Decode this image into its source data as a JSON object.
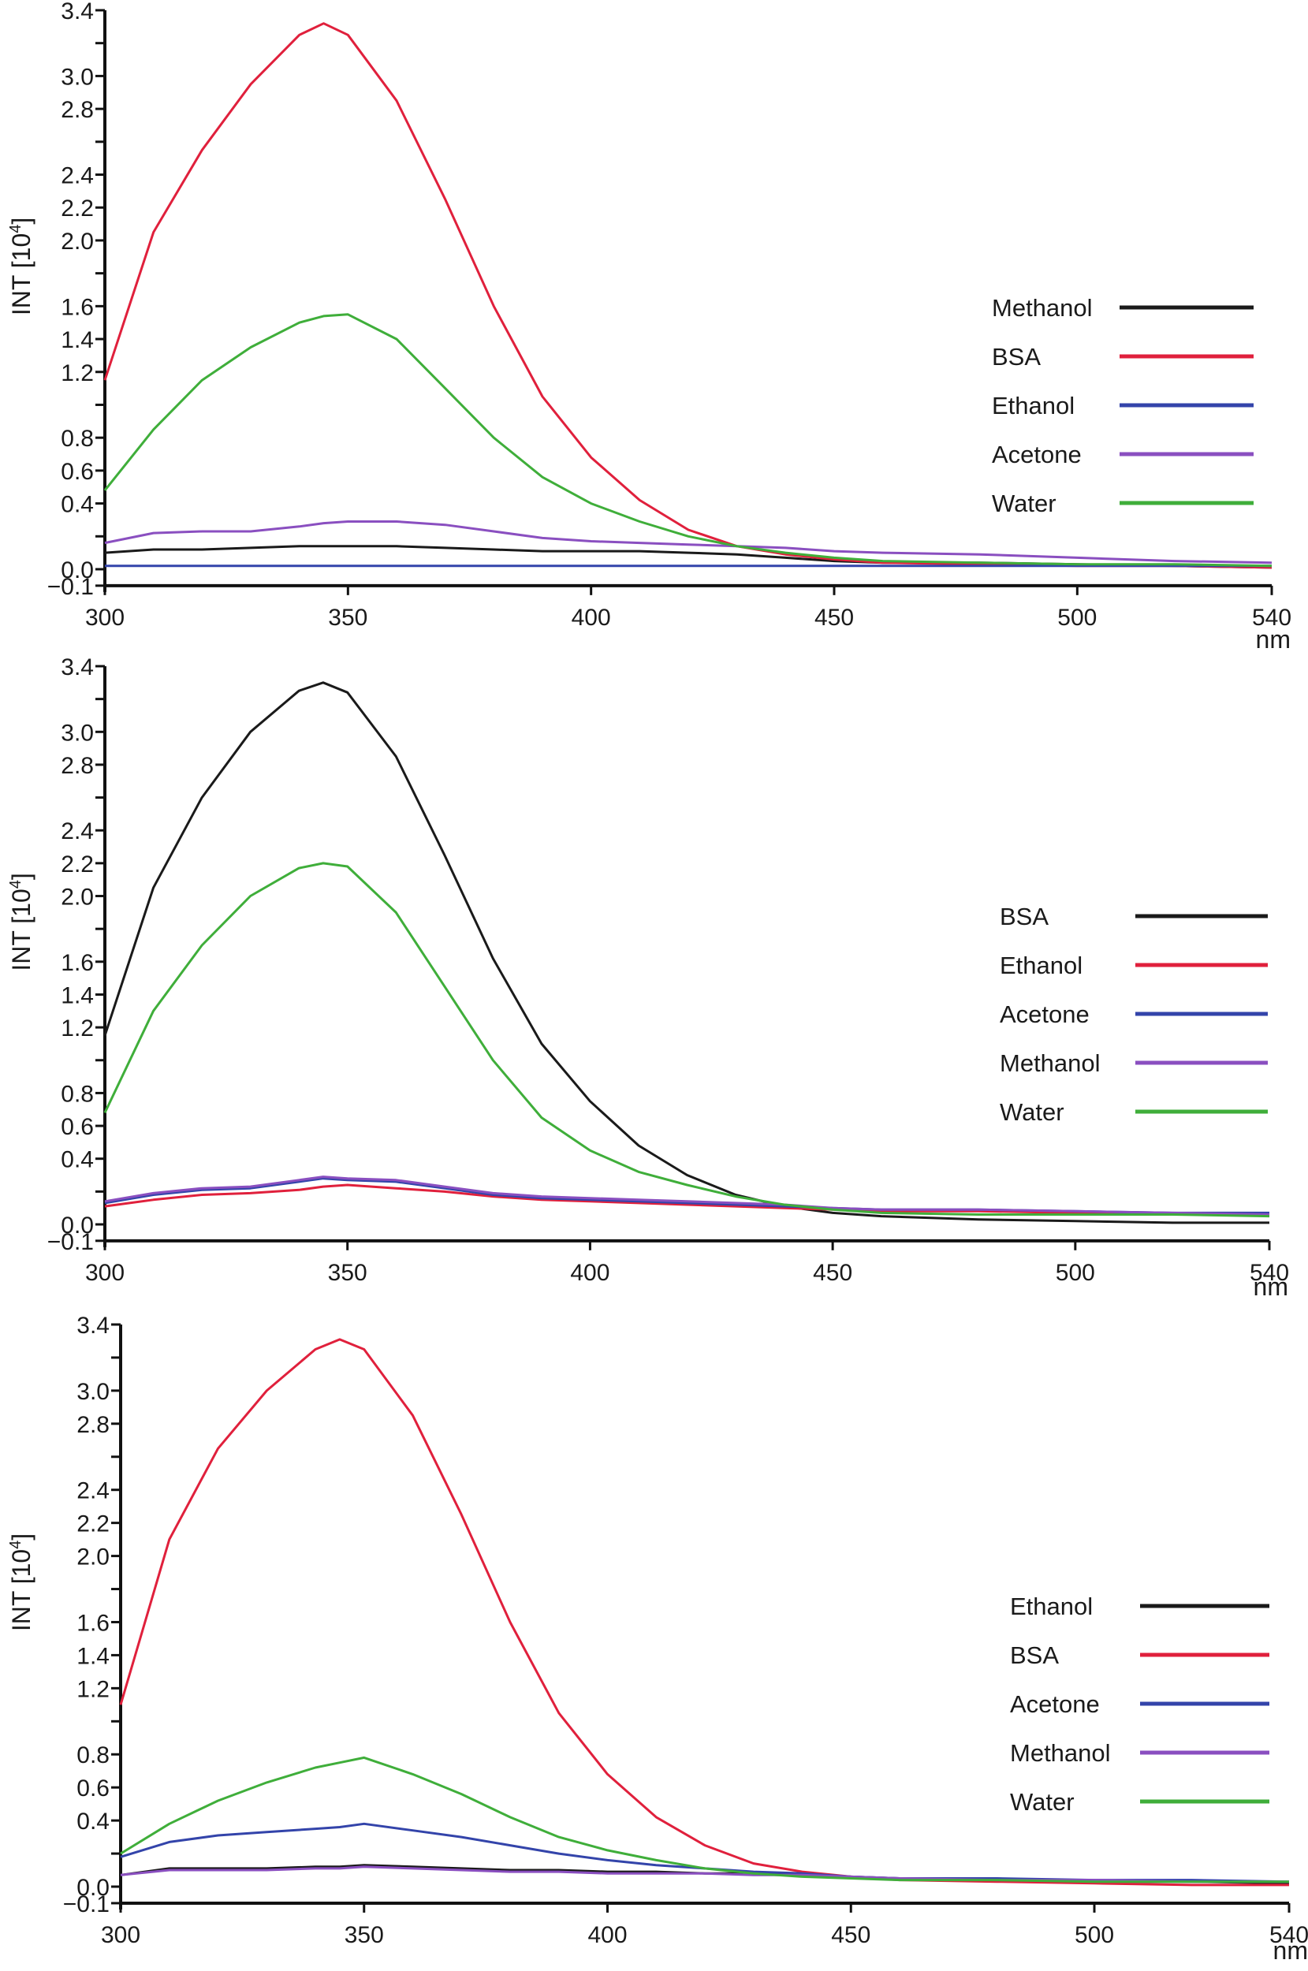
{
  "chart_data": [
    {
      "type": "line",
      "panel": "top",
      "xlabel": "nm",
      "ylabel": "INT [10^4]",
      "ylabel_base": "INT [10",
      "ylabel_exp": "4",
      "xlim": [
        300,
        540
      ],
      "ylim": [
        -0.1,
        3.4
      ],
      "x_ticks": [
        300,
        350,
        400,
        450,
        500,
        540
      ],
      "x_tick_labels": [
        "300",
        "350",
        "400",
        "450",
        "500",
        "540"
      ],
      "y_ticks": [
        3.4,
        3.2,
        3.0,
        2.8,
        2.6,
        2.4,
        2.2,
        2.0,
        1.8,
        1.6,
        1.4,
        1.2,
        1.0,
        0.8,
        0.6,
        0.4,
        0.2,
        0.0,
        -0.1
      ],
      "y_tick_labels": [
        "3.4",
        "",
        "3.0",
        "2.8",
        "",
        "2.4",
        "2.2",
        "2.0",
        "",
        "1.6",
        "1.4",
        "1.2",
        "",
        "0.8",
        "0.6",
        "0.4",
        "",
        "0.0",
        "-0.1"
      ],
      "grid": false,
      "legend_position": "right",
      "x": [
        300,
        310,
        320,
        330,
        340,
        345,
        350,
        360,
        370,
        380,
        390,
        400,
        410,
        420,
        430,
        440,
        450,
        460,
        480,
        500,
        520,
        540
      ],
      "series": [
        {
          "name": "Methanol",
          "color": "#1a1a1a",
          "values": [
            0.1,
            0.12,
            0.12,
            0.13,
            0.14,
            0.14,
            0.14,
            0.14,
            0.13,
            0.12,
            0.11,
            0.11,
            0.11,
            0.1,
            0.09,
            0.07,
            0.05,
            0.04,
            0.04,
            0.03,
            0.02,
            0.01
          ]
        },
        {
          "name": "BSA",
          "color": "#e0203c",
          "values": [
            1.15,
            2.05,
            2.55,
            2.95,
            3.25,
            3.32,
            3.25,
            2.85,
            2.25,
            1.6,
            1.05,
            0.68,
            0.42,
            0.24,
            0.14,
            0.09,
            0.06,
            0.04,
            0.03,
            0.02,
            0.02,
            0.01
          ]
        },
        {
          "name": "Ethanol",
          "color": "#3344aa",
          "values": [
            0.02,
            0.02,
            0.02,
            0.02,
            0.02,
            0.02,
            0.02,
            0.02,
            0.02,
            0.02,
            0.02,
            0.02,
            0.02,
            0.02,
            0.02,
            0.02,
            0.02,
            0.02,
            0.02,
            0.02,
            0.02,
            0.02
          ]
        },
        {
          "name": "Acetone",
          "color": "#8a4fc0",
          "values": [
            0.16,
            0.22,
            0.23,
            0.23,
            0.26,
            0.28,
            0.29,
            0.29,
            0.27,
            0.23,
            0.19,
            0.17,
            0.16,
            0.15,
            0.14,
            0.13,
            0.11,
            0.1,
            0.09,
            0.07,
            0.05,
            0.04
          ]
        },
        {
          "name": "Water",
          "color": "#3fae3a",
          "values": [
            0.48,
            0.85,
            1.15,
            1.35,
            1.5,
            1.54,
            1.55,
            1.4,
            1.1,
            0.8,
            0.56,
            0.4,
            0.29,
            0.2,
            0.14,
            0.1,
            0.07,
            0.05,
            0.04,
            0.03,
            0.03,
            0.02
          ]
        }
      ]
    },
    {
      "type": "line",
      "panel": "middle",
      "xlabel": "nm",
      "ylabel": "INT [10^4]",
      "ylabel_base": "INT [10",
      "ylabel_exp": "4",
      "xlim": [
        300,
        540
      ],
      "ylim": [
        -0.1,
        3.4
      ],
      "x_ticks": [
        300,
        350,
        400,
        450,
        500,
        540
      ],
      "x_tick_labels": [
        "300",
        "350",
        "400",
        "450",
        "500",
        "540"
      ],
      "y_ticks": [
        3.4,
        3.2,
        3.0,
        2.8,
        2.6,
        2.4,
        2.2,
        2.0,
        1.8,
        1.6,
        1.4,
        1.2,
        1.0,
        0.8,
        0.6,
        0.4,
        0.2,
        0.0,
        -0.1
      ],
      "y_tick_labels": [
        "3.4",
        "",
        "3.0",
        "2.8",
        "",
        "2.4",
        "2.2",
        "2.0",
        "",
        "1.6",
        "1.4",
        "1.2",
        "",
        "0.8",
        "0.6",
        "0.4",
        "",
        "0.0",
        "-0.1"
      ],
      "grid": false,
      "legend_position": "right",
      "x": [
        300,
        310,
        320,
        330,
        340,
        345,
        350,
        360,
        370,
        380,
        390,
        400,
        410,
        420,
        430,
        440,
        450,
        460,
        480,
        500,
        520,
        540
      ],
      "series": [
        {
          "name": "BSA",
          "color": "#1a1a1a",
          "values": [
            1.15,
            2.05,
            2.6,
            3.0,
            3.25,
            3.3,
            3.24,
            2.85,
            2.25,
            1.62,
            1.1,
            0.75,
            0.48,
            0.3,
            0.18,
            0.11,
            0.07,
            0.05,
            0.03,
            0.02,
            0.01,
            0.01
          ]
        },
        {
          "name": "Ethanol",
          "color": "#e0203c",
          "values": [
            0.11,
            0.15,
            0.18,
            0.19,
            0.21,
            0.23,
            0.24,
            0.22,
            0.2,
            0.17,
            0.15,
            0.14,
            0.13,
            0.12,
            0.11,
            0.1,
            0.09,
            0.08,
            0.08,
            0.07,
            0.06,
            0.06
          ]
        },
        {
          "name": "Acetone",
          "color": "#3344aa",
          "values": [
            0.13,
            0.18,
            0.21,
            0.22,
            0.26,
            0.28,
            0.27,
            0.26,
            0.22,
            0.18,
            0.16,
            0.15,
            0.14,
            0.13,
            0.12,
            0.11,
            0.1,
            0.09,
            0.09,
            0.08,
            0.07,
            0.07
          ]
        },
        {
          "name": "Methanol",
          "color": "#8a4fc0",
          "values": [
            0.14,
            0.19,
            0.22,
            0.23,
            0.27,
            0.29,
            0.28,
            0.27,
            0.23,
            0.19,
            0.17,
            0.16,
            0.15,
            0.14,
            0.13,
            0.12,
            0.1,
            0.09,
            0.09,
            0.08,
            0.07,
            0.06
          ]
        },
        {
          "name": "Water",
          "color": "#3fae3a",
          "values": [
            0.68,
            1.3,
            1.7,
            2.0,
            2.17,
            2.2,
            2.18,
            1.9,
            1.45,
            1.0,
            0.65,
            0.45,
            0.32,
            0.24,
            0.17,
            0.12,
            0.09,
            0.07,
            0.06,
            0.06,
            0.06,
            0.05
          ]
        }
      ]
    },
    {
      "type": "line",
      "panel": "bottom",
      "xlabel": "nm",
      "ylabel": "INT [10^4]",
      "ylabel_base": "INT [10",
      "ylabel_exp": "4",
      "xlim": [
        300,
        540
      ],
      "ylim": [
        -0.1,
        3.4
      ],
      "x_ticks": [
        300,
        350,
        400,
        450,
        500,
        540
      ],
      "x_tick_labels": [
        "300",
        "350",
        "400",
        "450",
        "500",
        "540"
      ],
      "y_ticks": [
        3.4,
        3.2,
        3.0,
        2.8,
        2.6,
        2.4,
        2.2,
        2.0,
        1.8,
        1.6,
        1.4,
        1.2,
        1.0,
        0.8,
        0.6,
        0.4,
        0.2,
        0.0,
        -0.1
      ],
      "y_tick_labels": [
        "3.4",
        "",
        "3.0",
        "2.8",
        "",
        "2.4",
        "2.2",
        "2.0",
        "",
        "1.6",
        "1.4",
        "1.2",
        "",
        "0.8",
        "0.6",
        "0.4",
        "",
        "0.0",
        "-0.1"
      ],
      "grid": false,
      "legend_position": "right",
      "x": [
        300,
        310,
        320,
        330,
        340,
        345,
        350,
        360,
        370,
        380,
        390,
        400,
        410,
        420,
        430,
        440,
        450,
        460,
        480,
        500,
        520,
        540
      ],
      "series": [
        {
          "name": "Ethanol",
          "color": "#1a1a1a",
          "values": [
            0.07,
            0.11,
            0.11,
            0.11,
            0.12,
            0.12,
            0.13,
            0.12,
            0.11,
            0.1,
            0.1,
            0.09,
            0.09,
            0.08,
            0.08,
            0.07,
            0.06,
            0.05,
            0.04,
            0.03,
            0.03,
            0.02
          ]
        },
        {
          "name": "BSA",
          "color": "#e0203c",
          "values": [
            1.1,
            2.1,
            2.65,
            3.0,
            3.25,
            3.31,
            3.25,
            2.85,
            2.25,
            1.6,
            1.05,
            0.68,
            0.42,
            0.25,
            0.14,
            0.09,
            0.06,
            0.04,
            0.03,
            0.02,
            0.01,
            0.01
          ]
        },
        {
          "name": "Acetone",
          "color": "#3344aa",
          "values": [
            0.18,
            0.27,
            0.31,
            0.33,
            0.35,
            0.36,
            0.38,
            0.34,
            0.3,
            0.25,
            0.2,
            0.16,
            0.13,
            0.11,
            0.09,
            0.08,
            0.06,
            0.05,
            0.05,
            0.04,
            0.04,
            0.03
          ]
        },
        {
          "name": "Methanol",
          "color": "#8a4fc0",
          "values": [
            0.07,
            0.1,
            0.1,
            0.1,
            0.11,
            0.11,
            0.12,
            0.11,
            0.1,
            0.09,
            0.09,
            0.08,
            0.08,
            0.08,
            0.07,
            0.07,
            0.06,
            0.05,
            0.04,
            0.04,
            0.03,
            0.03
          ]
        },
        {
          "name": "Water",
          "color": "#3fae3a",
          "values": [
            0.2,
            0.38,
            0.52,
            0.63,
            0.72,
            0.75,
            0.78,
            0.68,
            0.56,
            0.42,
            0.3,
            0.22,
            0.16,
            0.11,
            0.08,
            0.06,
            0.05,
            0.04,
            0.04,
            0.03,
            0.03,
            0.03
          ]
        }
      ]
    }
  ]
}
